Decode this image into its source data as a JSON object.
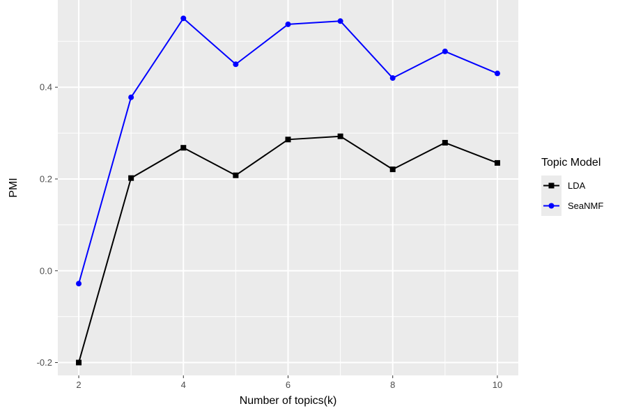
{
  "chart_data": {
    "type": "line",
    "x": [
      2,
      3,
      4,
      5,
      6,
      7,
      8,
      9,
      10
    ],
    "series": [
      {
        "name": "LDA",
        "values": [
          -0.2,
          0.202,
          0.268,
          0.208,
          0.286,
          0.293,
          0.221,
          0.279,
          0.235
        ],
        "color": "#000000",
        "marker": "square"
      },
      {
        "name": "SeaNMF",
        "values": [
          -0.028,
          0.378,
          0.55,
          0.45,
          0.537,
          0.544,
          0.42,
          0.478,
          0.43
        ],
        "color": "#0000ff",
        "marker": "circle"
      }
    ],
    "xlabel": "Number of topics(k)",
    "ylabel": "PMI",
    "xlim": [
      1.6,
      10.4
    ],
    "ylim": [
      -0.228,
      0.59
    ],
    "xticks": [
      2,
      4,
      6,
      8,
      10
    ],
    "xtick_labels": [
      "2",
      "4",
      "6",
      "8",
      "10"
    ],
    "yticks": [
      -0.2,
      0.0,
      0.2,
      0.4
    ],
    "ytick_labels": [
      "-0.2",
      "0.0",
      "0.2",
      "0.4"
    ],
    "grid": true,
    "legend": {
      "title": "Topic Model",
      "position": "right"
    },
    "panel_background": "#ebebeb",
    "grid_color": "#ffffff"
  }
}
